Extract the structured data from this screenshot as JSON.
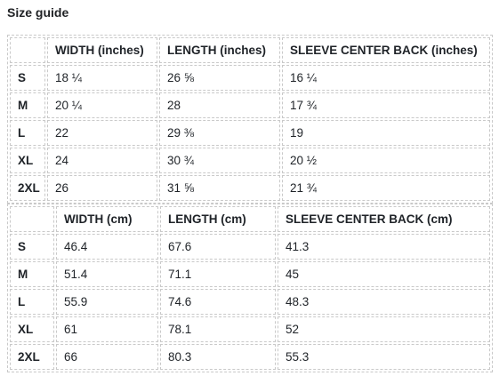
{
  "title": "Size guide",
  "inches": {
    "headers": [
      "",
      "WIDTH (inches)",
      "LENGTH (inches)",
      "SLEEVE CENTER BACK (inches)"
    ],
    "rows": [
      [
        "S",
        "18 ¼",
        "26 ⅝",
        "16 ¼"
      ],
      [
        "M",
        "20 ¼",
        "28",
        "17 ¾"
      ],
      [
        "L",
        "22",
        "29 ⅜",
        "19"
      ],
      [
        "XL",
        "24",
        "30 ¾",
        "20 ½"
      ],
      [
        "2XL",
        "26",
        "31 ⅝",
        "21 ¾"
      ]
    ]
  },
  "cm": {
    "headers": [
      "",
      "WIDTH (cm)",
      "LENGTH (cm)",
      "SLEEVE CENTER BACK (cm)"
    ],
    "rows": [
      [
        "S",
        "46.4",
        "67.6",
        "41.3"
      ],
      [
        "M",
        "51.4",
        "71.1",
        "45"
      ],
      [
        "L",
        "55.9",
        "74.6",
        "48.3"
      ],
      [
        "XL",
        "61",
        "78.1",
        "52"
      ],
      [
        "2XL",
        "66",
        "80.3",
        "55.3"
      ]
    ]
  }
}
